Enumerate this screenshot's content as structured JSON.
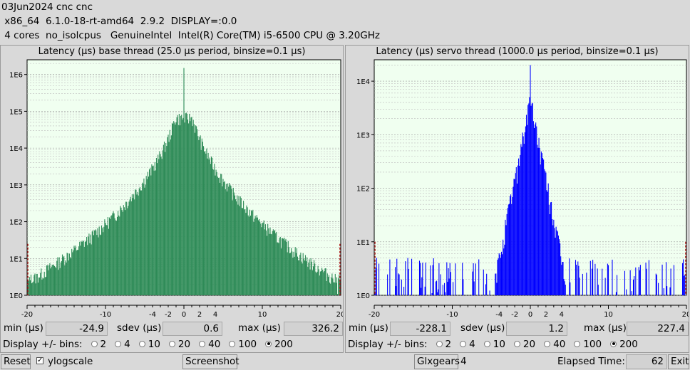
{
  "header": {
    "line1": "03Jun2024 cnc cnc",
    "line2": " x86_64  6.1.0-18-rt-amd64  2.9.2  DISPLAY=:0.0",
    "line3": " 4 cores  no_isolcpus   GenuineIntel  Intel(R) Core(TM) i5-6500 CPU @ 3.20GHz"
  },
  "base": {
    "title": "Latency (µs) base thread (25.0 µs period, binsize=0.1 µs)",
    "min_label": "min (µs)",
    "min": "-24.9",
    "sdev_label": "sdev (µs)",
    "sdev": "0.6",
    "max_label": "max (µs)",
    "max": "326.2"
  },
  "servo": {
    "title": "Latency (µs) servo thread (1000.0 µs period, binsize=0.1 µs)",
    "min_label": "min (µs)",
    "min": "-228.1",
    "sdev_label": "sdev (µs)",
    "sdev": "1.2",
    "max_label": "max (µs)",
    "max": "227.4"
  },
  "bins_label": "Display +/- bins:",
  "bin_options": [
    "2",
    "4",
    "10",
    "20",
    "40",
    "100",
    "200"
  ],
  "bin_selected": "200",
  "bottom": {
    "reset": "Reset",
    "ylogscale": "ylogscale",
    "screenshot": "Screenshot",
    "glxgears": "Glxgears",
    "glxgears_count": "4",
    "elapsed_label": "Elapsed Time:",
    "elapsed": "62",
    "exit": "Exit"
  },
  "chart_data": [
    {
      "type": "bar",
      "scale": "log",
      "color": "#2e8b57",
      "xticks": [
        "-20",
        "-10",
        "-4",
        "-2",
        "0",
        "2",
        "4",
        "10",
        "20"
      ],
      "yticks": [
        "1E0",
        "1E1",
        "1E2",
        "1E3",
        "1E4",
        "1E5",
        "1E6"
      ],
      "xlim": [
        -20,
        20
      ],
      "ylim_decades": [
        0,
        6.4
      ],
      "peak": 1500000,
      "edge_counts": 25
    },
    {
      "type": "bar",
      "scale": "log",
      "color": "#0000ff",
      "xticks": [
        "-20",
        "-10",
        "-4",
        "-2",
        "0",
        "2",
        "4",
        "10",
        "20"
      ],
      "yticks": [
        "1E0",
        "1E1",
        "1E2",
        "1E3",
        "1E4"
      ],
      "xlim": [
        -20,
        20
      ],
      "ylim_decades": [
        0,
        4.4
      ],
      "peak": 20000,
      "edge_counts": 10
    }
  ]
}
